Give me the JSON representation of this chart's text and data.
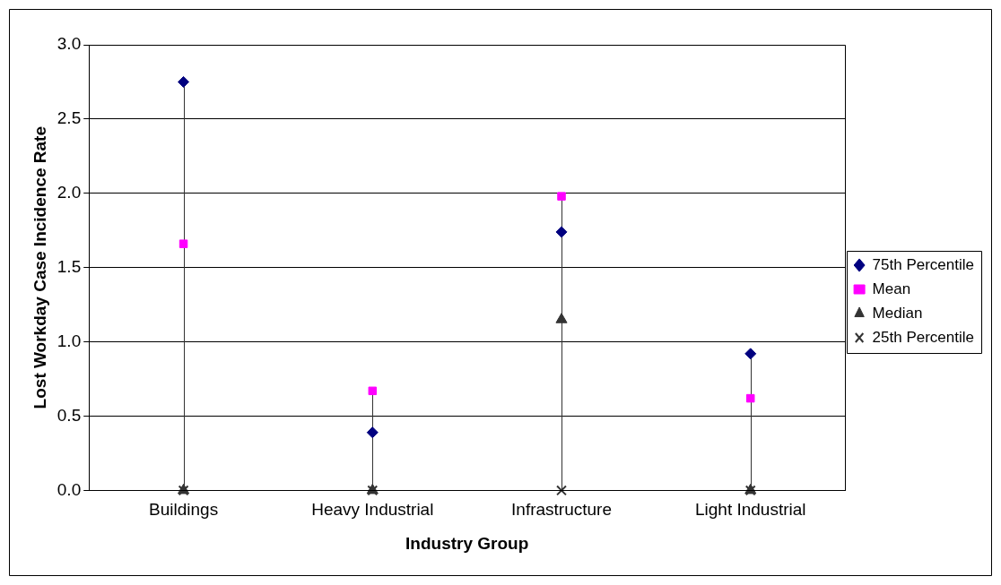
{
  "chart_data": {
    "type": "scatter",
    "xlabel": "Industry Group",
    "ylabel": "Lost Workday Case Incidence Rate",
    "categories": [
      "Buildings",
      "Heavy Industrial",
      "Infrastructure",
      "Light Industrial"
    ],
    "series": [
      {
        "name": "75th Percentile",
        "color": "#000080",
        "marker": "diamond",
        "values": [
          2.75,
          0.39,
          1.74,
          0.92
        ]
      },
      {
        "name": "Mean",
        "color": "#ff00ff",
        "marker": "square",
        "values": [
          1.66,
          0.67,
          1.98,
          0.62
        ]
      },
      {
        "name": "Median",
        "color": "#333333",
        "marker": "triangle",
        "values": [
          0,
          0,
          1.15,
          0
        ]
      },
      {
        "name": "25th Percentile",
        "color": "#333333",
        "marker": "cross",
        "values": [
          0,
          0,
          0,
          0
        ]
      }
    ],
    "ylim": [
      0,
      3
    ],
    "yticks": [
      {
        "value": 0,
        "label": "0.0"
      },
      {
        "value": 0.5,
        "label": "0.5"
      },
      {
        "value": 1,
        "label": "1.0"
      },
      {
        "value": 1.5,
        "label": "1.5"
      },
      {
        "value": 2,
        "label": "2.0"
      },
      {
        "value": 2.5,
        "label": "2.5"
      },
      {
        "value": 3,
        "label": "3.0"
      }
    ],
    "grid": "y",
    "legend": "right"
  }
}
